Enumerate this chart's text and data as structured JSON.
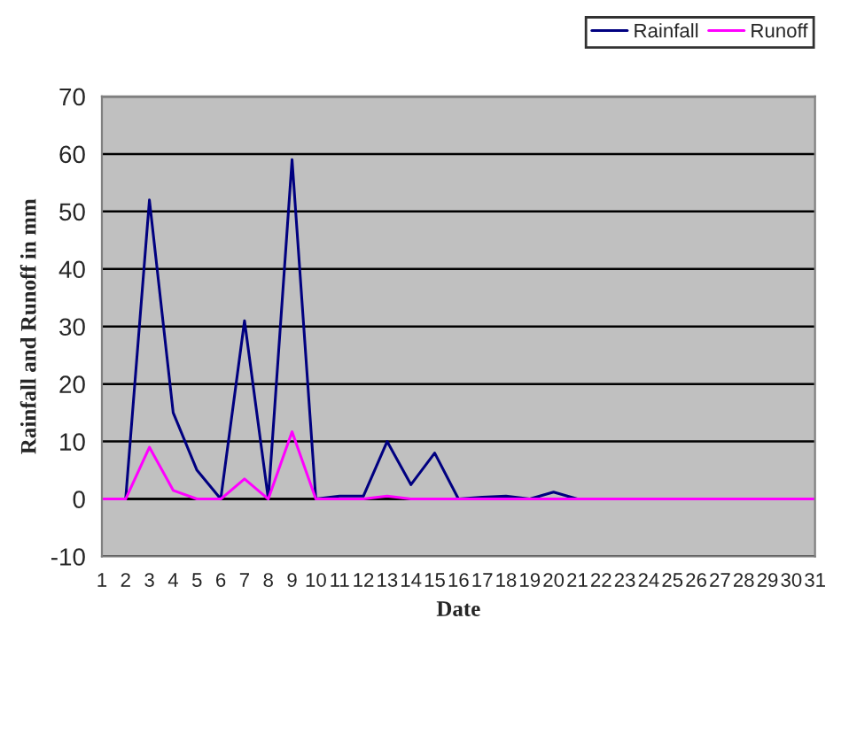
{
  "chart_data": {
    "type": "line",
    "xlabel": "Date",
    "ylabel": "Rainfall and Runoff in mm",
    "categories": [
      "1",
      "2",
      "3",
      "4",
      "5",
      "6",
      "7",
      "8",
      "9",
      "10",
      "11",
      "12",
      "13",
      "14",
      "15",
      "16",
      "17",
      "18",
      "19",
      "20",
      "21",
      "22",
      "23",
      "24",
      "25",
      "26",
      "27",
      "28",
      "29",
      "30",
      "31"
    ],
    "series": [
      {
        "name": "Rainfall",
        "color": "#000080",
        "values": [
          0,
          0,
          52,
          15,
          5,
          0,
          31,
          0,
          59,
          0,
          0.5,
          0.5,
          10,
          2.5,
          8,
          0,
          0.3,
          0.5,
          0,
          1.2,
          0,
          0,
          null,
          null,
          null,
          null,
          null,
          null,
          null,
          null,
          null
        ]
      },
      {
        "name": "Runoff",
        "color": "#ff00ff",
        "values": [
          0,
          0,
          9,
          1.5,
          0,
          0,
          3.5,
          0,
          11.7,
          0,
          0,
          0,
          0.5,
          0,
          0,
          0,
          0,
          0,
          0,
          0,
          0,
          0,
          0,
          0,
          0,
          0,
          0,
          0,
          0,
          0,
          0
        ]
      }
    ],
    "ylim": [
      -10,
      70
    ],
    "yticks": [
      -10,
      0,
      10,
      20,
      30,
      40,
      50,
      60,
      70
    ],
    "grid": "y",
    "legend": "top right",
    "marker": "none",
    "line_style": "solid"
  }
}
